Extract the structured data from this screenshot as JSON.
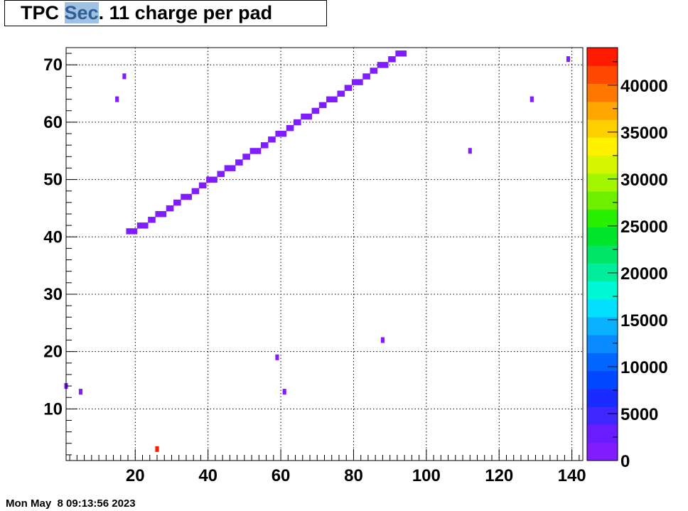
{
  "title": {
    "prefix": "TPC ",
    "highlighted": "Sec",
    "suffix": ". 11 charge per pad"
  },
  "timestamp": "Mon May  8 09:13:56 2023",
  "chart_data": {
    "type": "heatmap",
    "title": "TPC Sec. 11 charge per pad",
    "xlabel": "",
    "ylabel": "",
    "xlim": [
      1,
      143
    ],
    "ylim": [
      1,
      73
    ],
    "x_ticks": [
      20,
      40,
      60,
      80,
      100,
      120,
      140
    ],
    "y_ticks": [
      10,
      20,
      30,
      40,
      50,
      60,
      70
    ],
    "grid": true,
    "zlim": [
      0,
      44000
    ],
    "z_ticks": [
      0,
      5000,
      10000,
      15000,
      20000,
      25000,
      30000,
      35000,
      40000
    ],
    "palette": [
      "#7f1dff",
      "#6a1cff",
      "#3f27ff",
      "#1a2bff",
      "#0047ff",
      "#0066ff",
      "#0a8aff",
      "#0bb0ff",
      "#03e0ff",
      "#00f7d6",
      "#00ee9c",
      "#00e566",
      "#00e52c",
      "#29f000",
      "#6df000",
      "#a4f500",
      "#d6f500",
      "#fff200",
      "#ffcf00",
      "#ffa600",
      "#ff7700",
      "#ff4800",
      "#ff1a00"
    ],
    "track": [
      {
        "x": 18,
        "y": 41
      },
      {
        "x": 19,
        "y": 41
      },
      {
        "x": 20,
        "y": 41
      },
      {
        "x": 21,
        "y": 42
      },
      {
        "x": 22,
        "y": 42
      },
      {
        "x": 23,
        "y": 42
      },
      {
        "x": 24,
        "y": 43
      },
      {
        "x": 25,
        "y": 43
      },
      {
        "x": 26,
        "y": 44
      },
      {
        "x": 27,
        "y": 44
      },
      {
        "x": 28,
        "y": 44
      },
      {
        "x": 29,
        "y": 45
      },
      {
        "x": 30,
        "y": 45
      },
      {
        "x": 31,
        "y": 46
      },
      {
        "x": 32,
        "y": 46
      },
      {
        "x": 33,
        "y": 47
      },
      {
        "x": 34,
        "y": 47
      },
      {
        "x": 35,
        "y": 47
      },
      {
        "x": 36,
        "y": 48
      },
      {
        "x": 37,
        "y": 48
      },
      {
        "x": 38,
        "y": 49
      },
      {
        "x": 39,
        "y": 49
      },
      {
        "x": 40,
        "y": 50
      },
      {
        "x": 41,
        "y": 50
      },
      {
        "x": 42,
        "y": 50
      },
      {
        "x": 43,
        "y": 51
      },
      {
        "x": 44,
        "y": 51
      },
      {
        "x": 45,
        "y": 52
      },
      {
        "x": 46,
        "y": 52
      },
      {
        "x": 47,
        "y": 52
      },
      {
        "x": 48,
        "y": 53
      },
      {
        "x": 49,
        "y": 53
      },
      {
        "x": 50,
        "y": 54
      },
      {
        "x": 51,
        "y": 54
      },
      {
        "x": 52,
        "y": 55
      },
      {
        "x": 53,
        "y": 55
      },
      {
        "x": 54,
        "y": 55
      },
      {
        "x": 55,
        "y": 56
      },
      {
        "x": 56,
        "y": 56
      },
      {
        "x": 57,
        "y": 57
      },
      {
        "x": 58,
        "y": 57
      },
      {
        "x": 59,
        "y": 58
      },
      {
        "x": 60,
        "y": 58
      },
      {
        "x": 61,
        "y": 58
      },
      {
        "x": 62,
        "y": 59
      },
      {
        "x": 63,
        "y": 59
      },
      {
        "x": 64,
        "y": 60
      },
      {
        "x": 65,
        "y": 60
      },
      {
        "x": 66,
        "y": 61
      },
      {
        "x": 67,
        "y": 61
      },
      {
        "x": 68,
        "y": 61
      },
      {
        "x": 69,
        "y": 62
      },
      {
        "x": 70,
        "y": 62
      },
      {
        "x": 71,
        "y": 63
      },
      {
        "x": 72,
        "y": 63
      },
      {
        "x": 73,
        "y": 64
      },
      {
        "x": 74,
        "y": 64
      },
      {
        "x": 75,
        "y": 64
      },
      {
        "x": 76,
        "y": 65
      },
      {
        "x": 77,
        "y": 65
      },
      {
        "x": 78,
        "y": 66
      },
      {
        "x": 79,
        "y": 66
      },
      {
        "x": 80,
        "y": 67
      },
      {
        "x": 81,
        "y": 67
      },
      {
        "x": 82,
        "y": 67
      },
      {
        "x": 83,
        "y": 68
      },
      {
        "x": 84,
        "y": 68
      },
      {
        "x": 85,
        "y": 69
      },
      {
        "x": 86,
        "y": 69
      },
      {
        "x": 87,
        "y": 70
      },
      {
        "x": 88,
        "y": 70
      },
      {
        "x": 89,
        "y": 70
      },
      {
        "x": 90,
        "y": 71
      },
      {
        "x": 91,
        "y": 71
      },
      {
        "x": 92,
        "y": 72
      },
      {
        "x": 93,
        "y": 72
      },
      {
        "x": 94,
        "y": 72
      }
    ],
    "track_value": 1000,
    "points": [
      {
        "x": 17,
        "y": 68,
        "z": 1000
      },
      {
        "x": 15,
        "y": 64,
        "z": 1000
      },
      {
        "x": 1,
        "y": 14,
        "z": 1000
      },
      {
        "x": 5,
        "y": 13,
        "z": 1000
      },
      {
        "x": 26,
        "y": 3,
        "z": 44000
      },
      {
        "x": 59,
        "y": 19,
        "z": 1000
      },
      {
        "x": 61,
        "y": 13,
        "z": 1000
      },
      {
        "x": 88,
        "y": 22,
        "z": 1000
      },
      {
        "x": 112,
        "y": 55,
        "z": 1000
      },
      {
        "x": 129,
        "y": 64,
        "z": 1000
      },
      {
        "x": 139,
        "y": 71,
        "z": 1000
      }
    ]
  }
}
